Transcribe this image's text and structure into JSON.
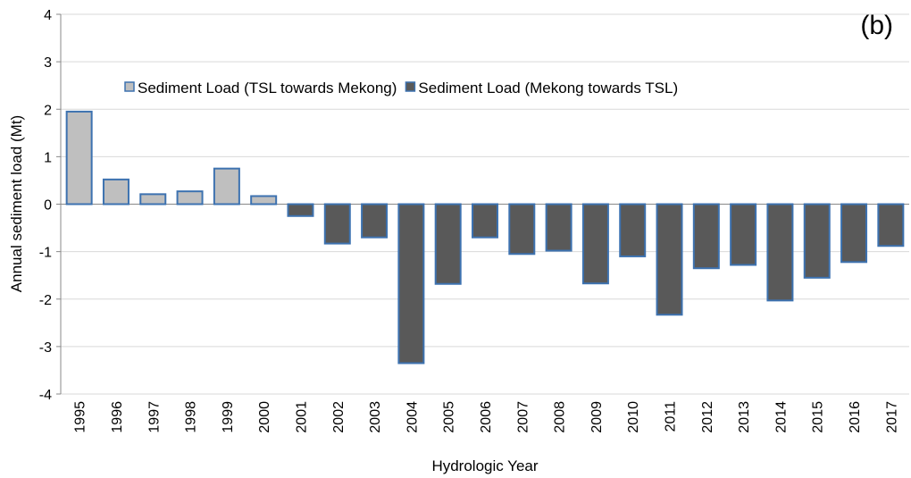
{
  "chart_data": {
    "type": "bar",
    "annotation": "(b)",
    "y_label": "Annual sediment load (Mt)",
    "x_label": "Hydrologic Year",
    "categories": [
      "1995",
      "1996",
      "1997",
      "1998",
      "1999",
      "2000",
      "2001",
      "2002",
      "2003",
      "2004",
      "2005",
      "2006",
      "2007",
      "2008",
      "2009",
      "2010",
      "2011",
      "2012",
      "2013",
      "2014",
      "2015",
      "2016",
      "2017"
    ],
    "series": [
      {
        "name": "Sediment Load (TSL towards Mekong)",
        "color": "#bfbfbf",
        "values": [
          1.95,
          0.52,
          0.21,
          0.27,
          0.75,
          0.17,
          null,
          null,
          null,
          null,
          null,
          null,
          null,
          null,
          null,
          null,
          null,
          null,
          null,
          null,
          null,
          null,
          null
        ]
      },
      {
        "name": "Sediment Load (Mekong towards TSL)",
        "color": "#595959",
        "values": [
          null,
          null,
          null,
          null,
          null,
          null,
          -0.25,
          -0.83,
          -0.7,
          -3.35,
          -1.68,
          -0.7,
          -1.05,
          -0.98,
          -1.67,
          -1.1,
          -2.33,
          -1.35,
          -1.28,
          -2.03,
          -1.55,
          -1.22,
          -0.88
        ]
      }
    ],
    "bar_edge_color": "#3d72b0",
    "ylim": [
      -4,
      4
    ],
    "yticks": [
      -4,
      -3,
      -2,
      -1,
      0,
      1,
      2,
      3,
      4
    ],
    "grid": true
  }
}
